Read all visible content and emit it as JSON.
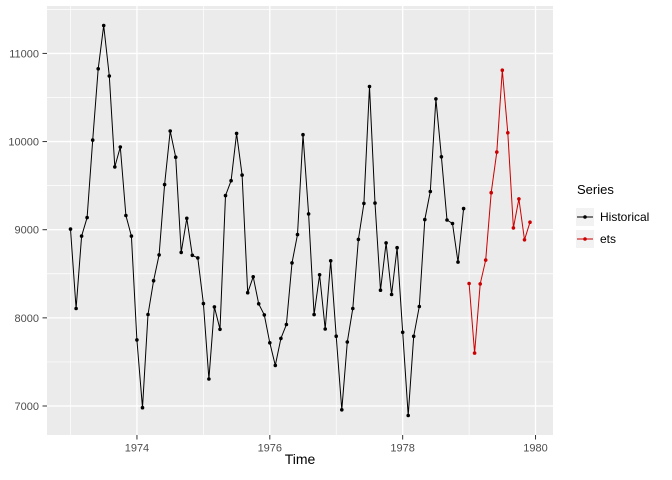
{
  "chart_data": {
    "type": "line",
    "title": "",
    "xlabel": "Time",
    "ylabel": "",
    "grid": true,
    "panel_background": "#EBEBEB",
    "gridline_color": "#FFFFFF",
    "axis_text_color": "#4D4D4D",
    "tick_mark_color": "#333333",
    "xlim": [
      1972.646,
      1980.263
    ],
    "ylim": [
      6671,
      11538
    ],
    "x_major_ticks": [
      1974,
      1976,
      1978,
      1980
    ],
    "x_minor_gridlines": [
      1973,
      1975,
      1977,
      1979
    ],
    "y_major_ticks": [
      7000,
      8000,
      9000,
      10000,
      11000
    ],
    "y_minor_gridlines": [
      7500,
      8500,
      9500,
      10500,
      11500
    ],
    "legend": {
      "title": "Series",
      "position": "right",
      "entries": [
        {
          "label": "Historical",
          "color": "#000000"
        },
        {
          "label": "ets",
          "color": "#CC0000"
        }
      ]
    },
    "series": [
      {
        "name": "Historical",
        "color": "#000000",
        "start": 1973,
        "frequency": 12,
        "values": [
          9007,
          8106,
          8928,
          9137,
          10017,
          10826,
          11317,
          10744,
          9713,
          9938,
          9161,
          8927,
          7750,
          6981,
          8038,
          8422,
          8714,
          9512,
          10120,
          9823,
          8743,
          9129,
          8710,
          8680,
          8162,
          7306,
          8124,
          7870,
          9387,
          9556,
          10093,
          9620,
          8285,
          8466,
          8160,
          8034,
          7717,
          7461,
          7767,
          7925,
          8623,
          8945,
          10078,
          9179,
          8037,
          8488,
          7874,
          8647,
          7792,
          6957,
          7726,
          8106,
          8890,
          9299,
          10625,
          9302,
          8314,
          8850,
          8265,
          8796,
          7836,
          6892,
          7791,
          8129,
          9115,
          9434,
          10484,
          9827,
          9110,
          9070,
          8633,
          9240
        ]
      },
      {
        "name": "ets",
        "color": "#CC0000",
        "start": 1979,
        "frequency": 12,
        "values": [
          8390,
          7600,
          8385,
          8655,
          9420,
          9880,
          10810,
          10100,
          9020,
          9350,
          8885,
          9085
        ]
      }
    ]
  }
}
